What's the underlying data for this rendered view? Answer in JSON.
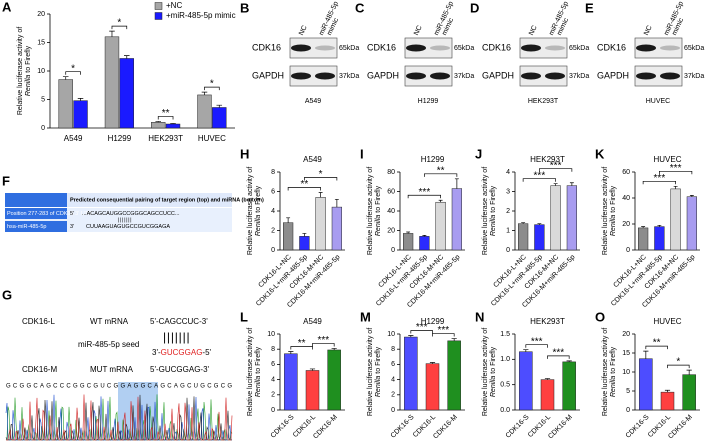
{
  "chart_data": [
    {
      "type": "grouped_bar",
      "panel": "A",
      "y_label": [
        "Relative luciferase activity of",
        "Renilla",
        "to Firefly"
      ],
      "categories": [
        "A549",
        "H1299",
        "HEK293T",
        "HUVEC"
      ],
      "series": [
        {
          "name": "+NC",
          "color": "#a6a6a6",
          "values": [
            8.5,
            16,
            1,
            5.8
          ],
          "errors": [
            0.5,
            1,
            0.15,
            0.5
          ]
        },
        {
          "name": "+miR-485-5p mimic",
          "color": "#1a1aff",
          "values": [
            4.8,
            12.2,
            0.7,
            3.6
          ],
          "errors": [
            0.4,
            0.5,
            0.1,
            0.4
          ]
        }
      ],
      "ylim": [
        0,
        20
      ],
      "yticks": [
        0,
        5,
        10,
        15,
        20
      ],
      "legend": "upper right",
      "annotations": [
        "*",
        "*",
        "**",
        "*"
      ]
    },
    {
      "type": "bar",
      "panel": "H",
      "title": "A549",
      "y_label": [
        "Relative luciferase activity of",
        "Renilla",
        "to Firefly"
      ],
      "categories": [
        "CDK16-L+NC",
        "CDK16-L+miR-485-5p",
        "CDK16-M+NC",
        "CDK16-M+miR-485-5p"
      ],
      "values": [
        2.8,
        1.4,
        5.4,
        4.4
      ],
      "errors": [
        0.5,
        0.3,
        0.5,
        0.8
      ],
      "colors": [
        "#8c8c8c",
        "#2b2bff",
        "#d9d9d9",
        "#a89cf0"
      ],
      "ylim": [
        0,
        8
      ],
      "yticks": [
        0,
        2,
        4,
        6,
        8
      ],
      "annotations": [
        "**",
        "*"
      ]
    },
    {
      "type": "bar",
      "panel": "I",
      "title": "H1299",
      "y_label": [
        "Relative luciferase activity of",
        "Renilla",
        "to Firefly"
      ],
      "categories": [
        "CDK16-L+NC",
        "CDK16-L+miR-485-5p",
        "CDK16-M+NC",
        "CDK16-M+miR-485-5p"
      ],
      "values": [
        17,
        14,
        49,
        63
      ],
      "errors": [
        1.5,
        1,
        2,
        10
      ],
      "colors": [
        "#8c8c8c",
        "#2b2bff",
        "#d9d9d9",
        "#a89cf0"
      ],
      "ylim": [
        0,
        80
      ],
      "yticks": [
        0,
        20,
        40,
        60,
        80
      ],
      "annotations": [
        "***",
        "**"
      ]
    },
    {
      "type": "bar",
      "panel": "J",
      "title": "HEK293T",
      "y_label": [
        "Relative luciferase activity of",
        "Renilla",
        "to Firefly"
      ],
      "categories": [
        "CDK16-L+NC",
        "CDK16-L+miR-485-5p",
        "CDK16-M+NC",
        "CDK16-M+miR-485-5p"
      ],
      "values": [
        1.35,
        1.3,
        3.3,
        3.3
      ],
      "errors": [
        0.05,
        0.05,
        0.1,
        0.15
      ],
      "colors": [
        "#8c8c8c",
        "#2b2bff",
        "#d9d9d9",
        "#a89cf0"
      ],
      "ylim": [
        0,
        4
      ],
      "yticks": [
        0,
        1,
        2,
        3,
        4
      ],
      "annotations": [
        "***",
        "***"
      ]
    },
    {
      "type": "bar",
      "panel": "K",
      "title": "HUVEC",
      "y_label": [
        "Relative luciferase activity of",
        "Renilla",
        "to Firefly"
      ],
      "categories": [
        "CDK16-L+NC",
        "CDK16-L+miR-485-5p",
        "CDK16-M+NC",
        "CDK16-M+miR-485-5p"
      ],
      "values": [
        17,
        18,
        47,
        41
      ],
      "errors": [
        1,
        1,
        2,
        1
      ],
      "colors": [
        "#8c8c8c",
        "#2b2bff",
        "#d9d9d9",
        "#a89cf0"
      ],
      "ylim": [
        0,
        60
      ],
      "yticks": [
        0,
        20,
        40,
        60
      ],
      "annotations": [
        "***",
        "***"
      ]
    },
    {
      "type": "bar",
      "panel": "L",
      "title": "A549",
      "y_label": [
        "Relative luciferase activity of",
        "Renilla",
        "to Firefly"
      ],
      "categories": [
        "CDK16-S",
        "CDK16-L",
        "CDK16-M"
      ],
      "values": [
        7.4,
        5.2,
        7.9
      ],
      "errors": [
        0.3,
        0.2,
        0.2
      ],
      "colors": [
        "#4d4dff",
        "#ff4040",
        "#1f8f1f"
      ],
      "ylim": [
        0,
        10
      ],
      "yticks": [
        0,
        2,
        4,
        6,
        8,
        10
      ],
      "annotations": [
        "**",
        "***"
      ]
    },
    {
      "type": "bar",
      "panel": "M",
      "title": "H1299",
      "y_label": [
        "Relative luciferase activity of",
        "Renilla",
        "to Firefly"
      ],
      "categories": [
        "CDK16-S",
        "CDK16-L",
        "CDK16-M"
      ],
      "values": [
        9.6,
        6.1,
        9.1
      ],
      "errors": [
        0.2,
        0.15,
        0.3
      ],
      "colors": [
        "#4d4dff",
        "#ff4040",
        "#1f8f1f"
      ],
      "ylim": [
        0,
        10
      ],
      "yticks": [
        0,
        2,
        4,
        6,
        8,
        10
      ],
      "annotations": [
        "***",
        "***"
      ]
    },
    {
      "type": "bar",
      "panel": "N",
      "title": "HEK293T",
      "y_label": [
        "Relative luciferase activity of",
        "Renilla",
        "to Firefly"
      ],
      "categories": [
        "CDK16-S",
        "CDK16-L",
        "CDK16-M"
      ],
      "values": [
        1.15,
        0.6,
        0.95
      ],
      "errors": [
        0.04,
        0.02,
        0.02
      ],
      "colors": [
        "#4d4dff",
        "#ff4040",
        "#1f8f1f"
      ],
      "ylim": [
        0,
        1.5
      ],
      "yticks": [
        {
          "value": 0,
          "label": "0.0"
        },
        0.5,
        {
          "value": 1,
          "label": "1.0"
        },
        1.5
      ],
      "annotations": [
        "***",
        "***"
      ]
    },
    {
      "type": "bar",
      "panel": "O",
      "title": "HUVEC",
      "y_label": [
        "Relative luciferase activity of",
        "Renilla",
        "to Firefly"
      ],
      "categories": [
        "CDK16-S",
        "CDK16-L",
        "CDK16-M"
      ],
      "values": [
        13.5,
        4.7,
        9.3
      ],
      "errors": [
        2,
        0.5,
        1.2
      ],
      "colors": [
        "#4d4dff",
        "#ff4040",
        "#1f8f1f"
      ],
      "ylim": [
        0,
        20
      ],
      "yticks": [
        0,
        5,
        10,
        15,
        20
      ],
      "annotations": [
        "**",
        "*"
      ]
    }
  ],
  "blots": [
    {
      "panel": "B",
      "lanes": [
        [
          "NC"
        ],
        [
          "miR-485-5p",
          "mimic"
        ]
      ],
      "rows": [
        {
          "protein": "CDK16",
          "size": "65kDa"
        },
        {
          "protein": "GAPDH",
          "size": "37kDa"
        }
      ],
      "cell_line": "A549"
    },
    {
      "panel": "C",
      "lanes": [
        [
          "NC"
        ],
        [
          "miR-485-5p",
          "mimic"
        ]
      ],
      "rows": [
        {
          "protein": "CDK16",
          "size": "65kDa"
        },
        {
          "protein": "GAPDH",
          "size": "37kDa"
        }
      ],
      "cell_line": "H1299"
    },
    {
      "panel": "D",
      "lanes": [
        [
          "NC"
        ],
        [
          "miR-485-5p",
          "mimic"
        ]
      ],
      "rows": [
        {
          "protein": "CDK16",
          "size": "65kDa"
        },
        {
          "protein": "GAPDH",
          "size": "37kDa"
        }
      ],
      "cell_line": "HEK293T"
    },
    {
      "panel": "E",
      "lanes": [
        [
          "NC"
        ],
        [
          "miR-485-5p",
          "mimic"
        ]
      ],
      "rows": [
        {
          "protein": "CDK16",
          "size": "65kDa"
        },
        {
          "protein": "GAPDH",
          "size": "37kDa"
        }
      ],
      "cell_line": "HUVEC"
    }
  ],
  "panel_f": {
    "panel": "F",
    "header": "Predicted consequential pairing of target region (top) and miRNA (bottom)",
    "target_name": "Position 277-283 of CDK16 3' UTR",
    "target_end": "5'",
    "target_seq": "...ACAGCAUGGCCGGGCAGCCUCC...",
    "pairing": "|||||||",
    "mirna_name": "hsa-miR-485-5p",
    "mirna_end": "3'",
    "mirna_seq": "CUUAAGUAGUGCCGUCGGAGA"
  },
  "panel_g": {
    "panel": "G",
    "wt_name": "CDK16-L",
    "wt_label": "WT mRNA",
    "wt_seq": "5'-CAGCCUC-3'",
    "pairing": "|||||||",
    "seed_label": "miR-485-5p seed",
    "seed_prefix": "3'-",
    "seed_core": "GUCGGAG",
    "seed_suffix": "-5'",
    "mut_name": "CDK16-M",
    "mut_label": "MUT mRNA",
    "mut_seq": "5'-GUCGGAG-3'",
    "sequence": "GCGGCAGCCCGGCGUCGGAGGCAGCAGCUGCGCG"
  }
}
